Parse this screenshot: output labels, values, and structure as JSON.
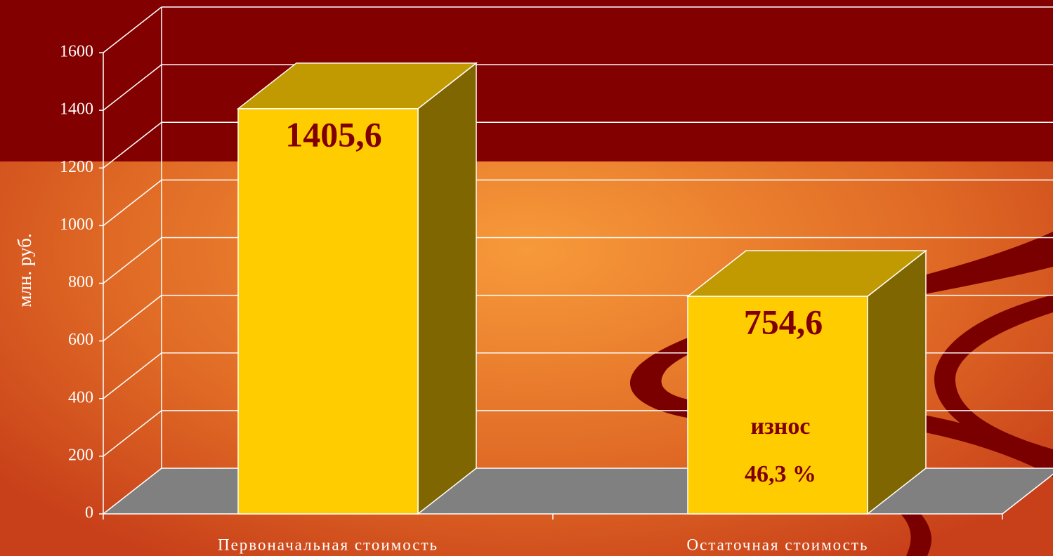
{
  "chart_data": {
    "type": "bar3d",
    "y_label": "млн. руб.",
    "categories": [
      "Первоначальная стоимость",
      "Остаточная стоимость"
    ],
    "values": [
      1405.6,
      754.6
    ],
    "value_labels": [
      "1405,6",
      "754,6"
    ],
    "annotations": [
      "износ",
      "46,3 %"
    ],
    "color": "#ffcc00",
    "ylim": [
      0,
      1600
    ],
    "yticks": [
      0,
      200,
      400,
      600,
      800,
      1000,
      1200,
      1400,
      1600
    ],
    "grid": true
  }
}
